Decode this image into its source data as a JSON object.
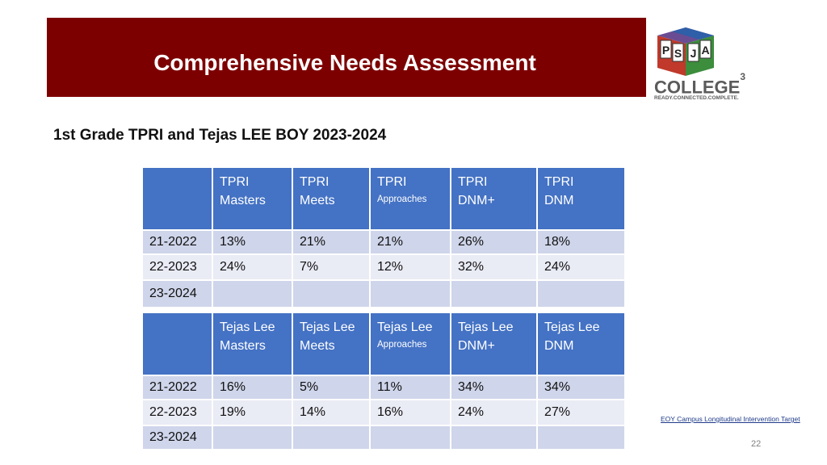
{
  "slide": {
    "title": "Comprehensive Needs Assessment",
    "subtitle": "1st Grade TPRI and Tejas LEE BOY 2023-2024",
    "footnote": "EOY Campus Longitudinal Intervention Target",
    "page_number": "22"
  },
  "logo": {
    "letters": [
      "P",
      "S",
      "J",
      "A"
    ],
    "word": "COLLEGE",
    "superscript": "3",
    "tagline": "READY.CONNECTED.COMPLETE.",
    "colors": {
      "red": "#c0392b",
      "blue": "#2e5fa8",
      "green": "#3c8d3c",
      "purple": "#6a4c93",
      "gray": "#5b5b5b"
    }
  },
  "tpri_table": {
    "headers": [
      {
        "line1": "",
        "line2": "",
        "small": ""
      },
      {
        "line1": "TPRI",
        "line2": "Masters",
        "small": ""
      },
      {
        "line1": "TPRI",
        "line2": "Meets",
        "small": ""
      },
      {
        "line1": "TPRI",
        "line2": "",
        "small": "Approaches"
      },
      {
        "line1": "TPRI",
        "line2": "DNM+",
        "small": ""
      },
      {
        "line1": "TPRI",
        "line2": "DNM",
        "small": ""
      }
    ],
    "rows": [
      [
        "21-2022",
        "13%",
        "21%",
        "21%",
        "26%",
        "18%"
      ],
      [
        "22-2023",
        "24%",
        "7%",
        "12%",
        "32%",
        "24%"
      ],
      [
        "23-2024",
        "",
        "",
        "",
        "",
        ""
      ]
    ]
  },
  "tejas_table": {
    "headers": [
      {
        "line1": "",
        "line2": "",
        "small": ""
      },
      {
        "line1": "Tejas Lee",
        "line2": "Masters",
        "small": ""
      },
      {
        "line1": "Tejas Lee",
        "line2": "Meets",
        "small": ""
      },
      {
        "line1": "Tejas Lee",
        "line2": "",
        "small": "Approaches"
      },
      {
        "line1": "Tejas Lee",
        "line2": "DNM+",
        "small": ""
      },
      {
        "line1": "Tejas Lee",
        "line2": "DNM",
        "small": ""
      }
    ],
    "rows": [
      [
        "21-2022",
        "16%",
        "5%",
        "11%",
        "34%",
        "34%"
      ],
      [
        "22-2023",
        "19%",
        "14%",
        "16%",
        "24%",
        "27%"
      ],
      [
        "23-2024",
        "",
        "",
        "",
        "",
        ""
      ]
    ]
  },
  "colors": {
    "title_bar": "#7d0000",
    "header_blue": "#4472c4",
    "row_dark": "#cfd5ea",
    "row_light": "#e9ebf5"
  }
}
